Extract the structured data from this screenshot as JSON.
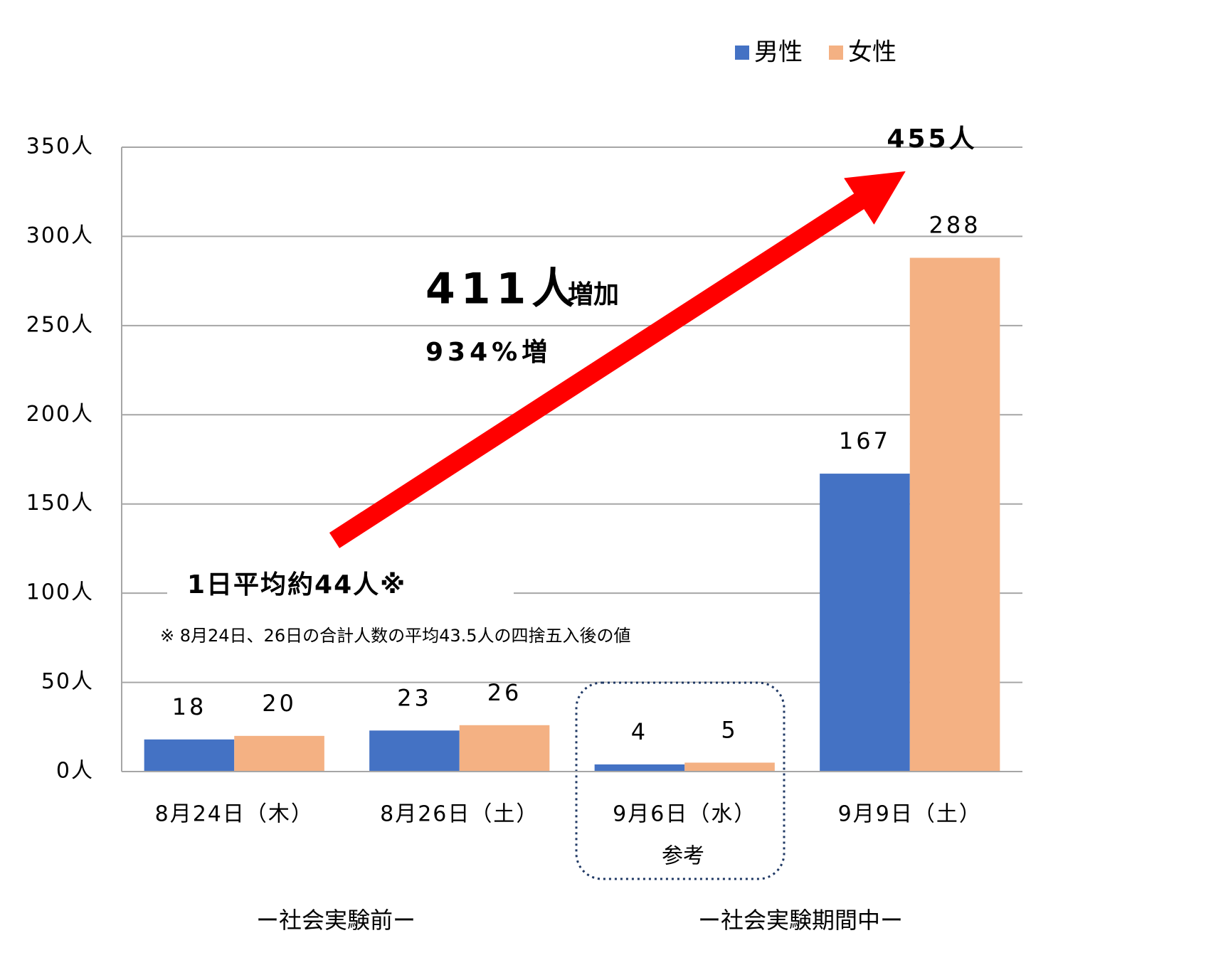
{
  "chart_data": {
    "type": "bar",
    "categories": [
      "8月24日（木）",
      "8月26日（土）",
      "9月6日（水）",
      "9月9日（土）"
    ],
    "series": [
      {
        "name": "男性",
        "color": "#4472c4",
        "values": [
          18,
          23,
          4,
          167
        ]
      },
      {
        "name": "女性",
        "color": "#f4b183",
        "values": [
          20,
          26,
          5,
          288
        ]
      }
    ],
    "ylim": [
      0,
      350
    ],
    "yticks": [
      {
        "value": 0,
        "label": "0人"
      },
      {
        "value": 50,
        "label": "50人"
      },
      {
        "value": 100,
        "label": "100人"
      },
      {
        "value": 150,
        "label": "150人"
      },
      {
        "value": 200,
        "label": "200人"
      },
      {
        "value": 250,
        "label": "250人"
      },
      {
        "value": 300,
        "label": "300人"
      },
      {
        "value": 350,
        "label": "350人"
      }
    ],
    "grid": true,
    "legend": "top-right",
    "annotations": {
      "total": "455人",
      "increase": "411人",
      "increase_suffix": "増加",
      "percent": "934%増",
      "average": "1日平均約44人※",
      "footnote": "※ 8月24日、26日の合計人数の平均43.5人の四捨五入後の値",
      "reference": "参考",
      "group_before": "ー社会実験前ー",
      "group_during": "ー社会実験期間中ー"
    }
  }
}
